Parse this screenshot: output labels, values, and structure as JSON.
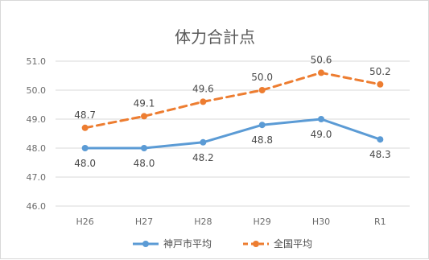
{
  "chart_data": {
    "type": "line",
    "title": "体力合計点",
    "xlabel": "",
    "ylabel": "",
    "categories": [
      "H26",
      "H27",
      "H28",
      "H29",
      "H30",
      "R1"
    ],
    "ylim": [
      46.0,
      51.0
    ],
    "yticks": [
      "46.0",
      "47.0",
      "48.0",
      "49.0",
      "50.0",
      "51.0"
    ],
    "grid": true,
    "legend_position": "bottom",
    "series": [
      {
        "name": "神戸市平均",
        "values": [
          48.0,
          48.0,
          48.2,
          48.8,
          49.0,
          48.3
        ],
        "labels": [
          "48.0",
          "48.0",
          "48.2",
          "48.8",
          "49.0",
          "48.3"
        ],
        "color": "#5b9bd5",
        "style": "solid",
        "label_position": "below"
      },
      {
        "name": "全国平均",
        "values": [
          48.7,
          49.1,
          49.6,
          50.0,
          50.6,
          50.2
        ],
        "labels": [
          "48.7",
          "49.1",
          "49.6",
          "50.0",
          "50.6",
          "50.2"
        ],
        "color": "#ed7d31",
        "style": "dashed",
        "label_position": "above"
      }
    ]
  }
}
